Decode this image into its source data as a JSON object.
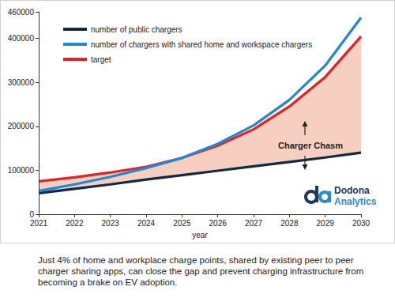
{
  "chart_data": {
    "type": "line",
    "x_label": "year",
    "categories": [
      "2021",
      "2022",
      "2023",
      "2024",
      "2025",
      "2026",
      "2027",
      "2028",
      "2029",
      "2030"
    ],
    "series": [
      {
        "name": "number of public chargers",
        "color": "#0f2a44",
        "values": [
          48000,
          58000,
          68000,
          79000,
          89000,
          99000,
          109000,
          119000,
          129000,
          140000
        ]
      },
      {
        "name": "number of chargers with shared home and workspace chargers",
        "color": "#2188d4",
        "values": [
          53000,
          68000,
          85000,
          105000,
          128000,
          160000,
          202000,
          260000,
          338000,
          447000
        ]
      },
      {
        "name": "target",
        "color": "#e32222",
        "values": [
          75000,
          84000,
          95000,
          108000,
          128000,
          156000,
          193000,
          245000,
          312000,
          404000
        ]
      }
    ],
    "ylim": [
      0,
      460000
    ],
    "yticks": [
      0,
      100000,
      200000,
      300000,
      400000
    ],
    "grid": false,
    "legend": "upper left",
    "annotation": "Charger Chasm",
    "logo": [
      "Dodona",
      "Analytics"
    ],
    "caption": "Just 4% of home and workplace charge points, shared by existing peer to peer charger sharing apps, can close the gap and prevent charging infrastructure from becoming a brake on EV adoption."
  }
}
